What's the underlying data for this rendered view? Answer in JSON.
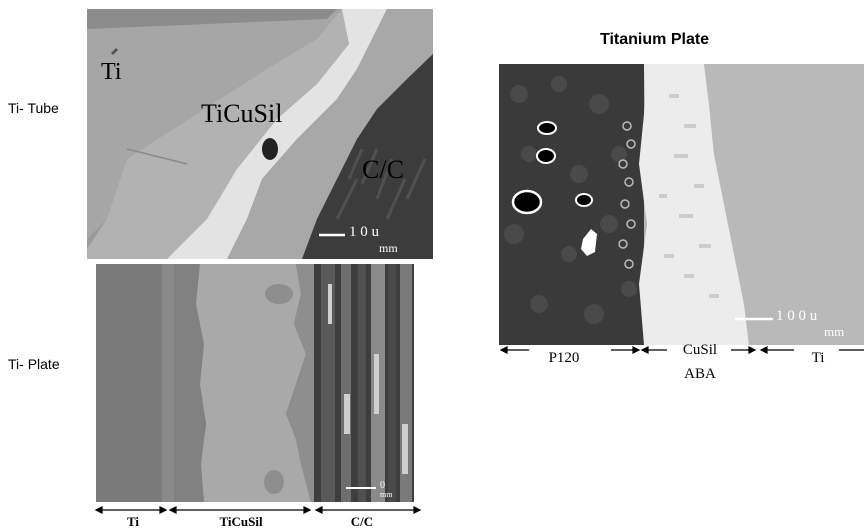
{
  "side_labels": {
    "tube": "Ti- Tube",
    "plate": "Ti- Plate"
  },
  "tube_panel": {
    "labels": {
      "ti": "Ti",
      "ticusil": "TiCuSil",
      "cc": "C/C"
    },
    "scale": {
      "num": "1 0 u",
      "unit": "mm"
    }
  },
  "plate_panel": {
    "scale": {
      "num": "0",
      "unit": "mm"
    },
    "axis": [
      "Ti",
      "TiCuSil",
      "C/C"
    ]
  },
  "titanium_plate": {
    "title": "Titanium Plate",
    "scale": {
      "num": "1 0 0 u",
      "unit": "mm"
    },
    "axis": {
      "p120": "P120",
      "cusil": "CuSil",
      "aba": "ABA",
      "ti": "Ti"
    }
  }
}
